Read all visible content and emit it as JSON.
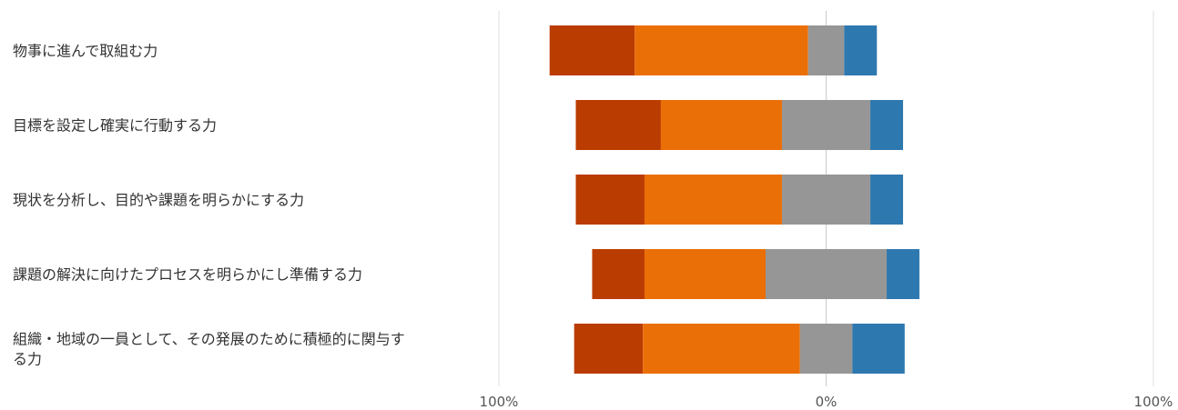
{
  "chart_data": {
    "type": "bar",
    "orientation": "horizontal",
    "stacked": true,
    "diverging": true,
    "categories": [
      [
        "物事に進んで取組む力"
      ],
      [
        "目標を設定し確実に行動する力"
      ],
      [
        "現状を分析し、目的や課題を明らかにする力"
      ],
      [
        "課題の解決に向けたプロセスを明らかにし準備する力"
      ],
      [
        "組織・地域の一員として、その発展のために積極的に関与す",
        "る力"
      ]
    ],
    "series": [
      {
        "color": "#bb3c00",
        "values": [
          26,
          26,
          21,
          16,
          21
        ]
      },
      {
        "color": "#ea6f07",
        "values": [
          53,
          37,
          42,
          37,
          48
        ]
      },
      {
        "color": "#969696",
        "values": [
          11,
          27,
          27,
          37,
          16
        ]
      },
      {
        "color": "#2e78b0",
        "values": [
          10,
          10,
          10,
          10,
          16
        ]
      }
    ],
    "neutral_series_index": 2,
    "xlim": [
      -100,
      100
    ],
    "xticks": [
      {
        "value": -100,
        "label": "100%"
      },
      {
        "value": 0,
        "label": "0%"
      },
      {
        "value": 100,
        "label": "100%"
      }
    ],
    "grid": true,
    "legend": "none"
  }
}
